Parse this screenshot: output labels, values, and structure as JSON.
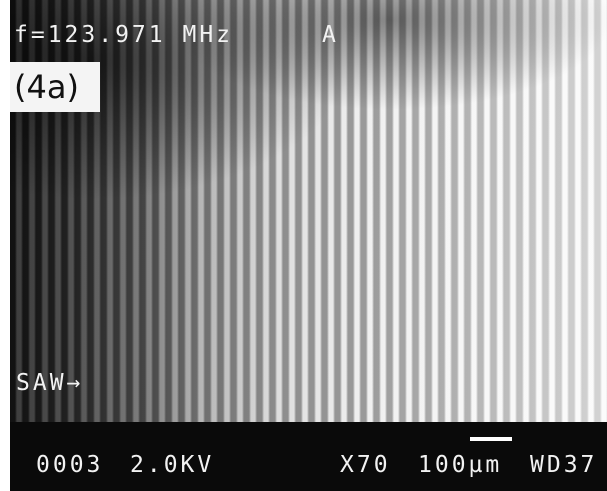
{
  "header": {
    "frequency": "f=123.971 MHz",
    "marker": "A"
  },
  "panel_label": "(4a)",
  "wave_label": "SAW→",
  "footer": {
    "image_number": "0003",
    "voltage": "2.0KV",
    "magnification": "X70",
    "scale": "100µm",
    "working_distance": "WD37"
  }
}
